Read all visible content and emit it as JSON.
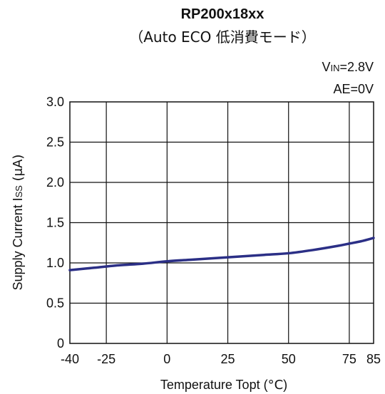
{
  "chart_data": {
    "type": "line",
    "title": "RP200x18xx",
    "subtitle": "（Auto ECO 低消費モード）",
    "annotations": {
      "vin_main": "V",
      "vin_sub": "IN",
      "vin_value": "=2.8V",
      "ae": "AE=0V"
    },
    "xlabel": {
      "prefix": "Temperature Topt (",
      "unit": "°C",
      "suffix": ")"
    },
    "ylabel": {
      "prefix": "Supply Current I",
      "sub": "SS",
      "suffix": " (μA)"
    },
    "xlim": [
      -40,
      85
    ],
    "ylim": [
      0,
      3.0
    ],
    "x_ticks": [
      -40,
      -25,
      0,
      25,
      50,
      75,
      85
    ],
    "x_tick_labels": [
      "-40",
      "-25",
      "0",
      "25",
      "50",
      "75",
      "85"
    ],
    "y_ticks": [
      0,
      0.5,
      1.0,
      1.5,
      2.0,
      2.5,
      3.0
    ],
    "y_tick_labels": [
      "0",
      "0.5",
      "1.0",
      "1.5",
      "2.0",
      "2.5",
      "3.0"
    ],
    "grid": true,
    "line_color": "#2b2f86",
    "series": [
      {
        "x": [
          -40,
          -30,
          -20,
          -10,
          0,
          10,
          20,
          30,
          40,
          50,
          60,
          70,
          75,
          80,
          85
        ],
        "y": [
          0.91,
          0.94,
          0.97,
          0.99,
          1.02,
          1.04,
          1.06,
          1.08,
          1.1,
          1.12,
          1.16,
          1.21,
          1.24,
          1.27,
          1.31
        ]
      }
    ]
  }
}
